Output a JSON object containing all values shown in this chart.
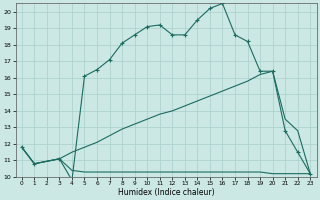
{
  "xlabel": "Humidex (Indice chaleur)",
  "bg_color": "#cce8e5",
  "grid_color": "#aacfcc",
  "line_color": "#1a6b60",
  "xlim": [
    -0.5,
    23.5
  ],
  "ylim": [
    10,
    20.5
  ],
  "xticks": [
    0,
    1,
    2,
    3,
    4,
    5,
    6,
    7,
    8,
    9,
    10,
    11,
    12,
    13,
    14,
    15,
    16,
    17,
    18,
    19,
    20,
    21,
    22,
    23
  ],
  "yticks": [
    10,
    11,
    12,
    13,
    14,
    15,
    16,
    17,
    18,
    19,
    20
  ],
  "line1_x": [
    0,
    1,
    3,
    4,
    5,
    6,
    7,
    8,
    9,
    10,
    11,
    12,
    13,
    14,
    15,
    16,
    17,
    18,
    19,
    20,
    21,
    22,
    23
  ],
  "line1_y": [
    11.8,
    10.8,
    11.1,
    9.8,
    16.1,
    16.5,
    17.1,
    18.1,
    18.6,
    19.1,
    19.2,
    18.6,
    18.6,
    19.5,
    20.2,
    20.5,
    18.6,
    18.2,
    16.4,
    16.4,
    12.8,
    11.5,
    10.2
  ],
  "line2_x": [
    0,
    1,
    3,
    4,
    5,
    6,
    7,
    8,
    9,
    10,
    11,
    12,
    13,
    14,
    15,
    16,
    17,
    18,
    19,
    20,
    21,
    22,
    23
  ],
  "line2_y": [
    11.8,
    10.8,
    11.1,
    11.5,
    11.8,
    12.1,
    12.5,
    12.9,
    13.2,
    13.5,
    13.8,
    14.0,
    14.3,
    14.6,
    14.9,
    15.2,
    15.5,
    15.8,
    16.2,
    16.4,
    13.5,
    12.8,
    10.2
  ],
  "line3_x": [
    0,
    1,
    3,
    4,
    5,
    10,
    15,
    19,
    20,
    21,
    22,
    23
  ],
  "line3_y": [
    11.8,
    10.8,
    11.1,
    10.4,
    10.3,
    10.3,
    10.3,
    10.3,
    10.2,
    10.2,
    10.2,
    10.2
  ]
}
